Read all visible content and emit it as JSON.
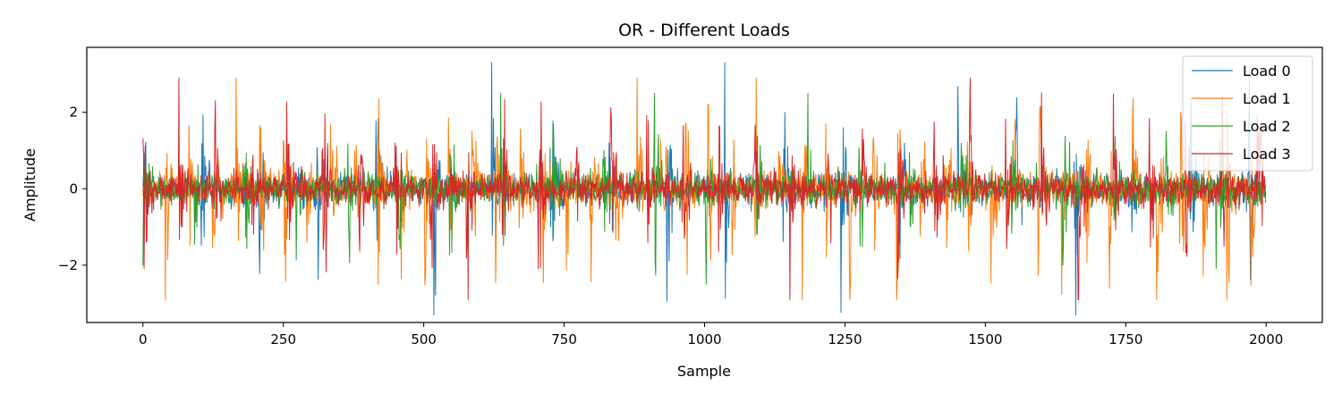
{
  "chart_data": {
    "type": "line",
    "title": "OR - Different Loads",
    "xlabel": "Sample",
    "ylabel": "Amplitude",
    "xlim": [
      -100,
      2100
    ],
    "ylim": [
      -3.5,
      3.7
    ],
    "xticks": [
      0,
      250,
      500,
      750,
      1000,
      1250,
      1500,
      1750,
      2000
    ],
    "yticks": [
      -2,
      0,
      2
    ],
    "ytick_labels": [
      "−2",
      "0",
      "2"
    ],
    "grid": false,
    "legend_position": "top-right",
    "n_samples": 2000,
    "series": [
      {
        "name": "Load 0",
        "color": "#1f77b4",
        "burst_starts": [
          0,
          104,
          207,
          310,
          414,
          518,
          621,
          725,
          829,
          933,
          1036,
          1140,
          1243,
          1347,
          1451,
          1554,
          1658,
          1761,
          1865,
          1969
        ],
        "peak_amplitude": 3.3,
        "noise_amplitude": 0.2
      },
      {
        "name": "Load 1",
        "color": "#ff7f0e",
        "burst_starts": [
          40,
          82,
          124,
          166,
          208,
          250,
          292,
          334,
          376,
          418,
          460,
          502,
          544,
          586,
          628,
          670,
          712,
          754,
          796,
          838,
          880,
          922,
          964,
          1006,
          1048,
          1090,
          1132,
          1174,
          1216,
          1258,
          1300,
          1342,
          1384,
          1426,
          1468,
          1510,
          1552,
          1594,
          1636,
          1678,
          1720,
          1762,
          1804,
          1846,
          1888,
          1930,
          1972
        ],
        "peak_amplitude": 2.9,
        "noise_amplitude": 0.2
      },
      {
        "name": "Load 2",
        "color": "#2ca02c",
        "burst_starts": [
          0,
          91,
          182,
          273,
          364,
          455,
          546,
          637,
          728,
          819,
          910,
          1001,
          1092,
          1183,
          1274,
          1365,
          1456,
          1547,
          1638,
          1729,
          1820,
          1911
        ],
        "peak_amplitude": 2.5,
        "noise_amplitude": 0.2
      },
      {
        "name": "Load 3",
        "color": "#d62728",
        "burst_starts": [
          0,
          64,
          128,
          192,
          256,
          320,
          384,
          448,
          512,
          576,
          640,
          704,
          768,
          832,
          896,
          960,
          1024,
          1088,
          1152,
          1216,
          1280,
          1344,
          1408,
          1472,
          1536,
          1600,
          1664,
          1728,
          1792,
          1856,
          1920,
          1984
        ],
        "peak_amplitude": 2.9,
        "noise_amplitude": 0.2
      }
    ]
  }
}
